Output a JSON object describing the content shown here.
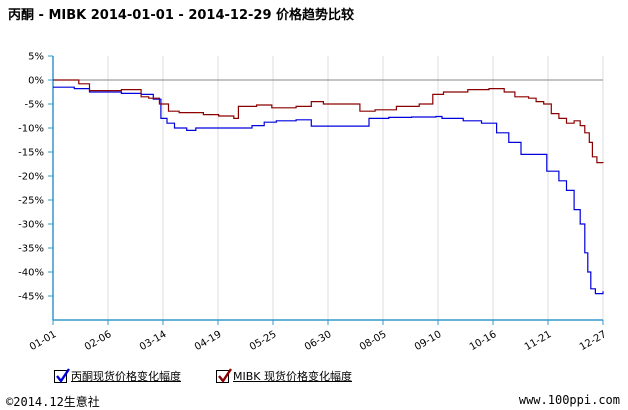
{
  "chart_data": {
    "type": "line",
    "title": "丙酮 - MIBK 2014-01-01 - 2014-12-29 价格趋势比较",
    "xlabel": "",
    "ylabel": "",
    "x_ticks": [
      "01-01",
      "02-06",
      "03-14",
      "04-19",
      "05-25",
      "06-30",
      "08-05",
      "09-10",
      "10-16",
      "11-21",
      "12-27"
    ],
    "y_ticks": [
      "5%",
      "0%",
      "-5%",
      "-10%",
      "-15%",
      "-20%",
      "-25%",
      "-30%",
      "-35%",
      "-40%",
      "-45%"
    ],
    "ylim": [
      -50,
      5
    ],
    "xlim": [
      "2014-01-01",
      "2014-12-29"
    ],
    "series": [
      {
        "name": "丙酮现货价格变化幅度",
        "color": "#0000dd",
        "points": [
          [
            "2014-01-01",
            -1.5
          ],
          [
            "2014-01-15",
            -1.8
          ],
          [
            "2014-01-25",
            -2.5
          ],
          [
            "2014-02-15",
            -2.8
          ],
          [
            "2014-02-28",
            -3.0
          ],
          [
            "2014-03-08",
            -4.0
          ],
          [
            "2014-03-13",
            -8.0
          ],
          [
            "2014-03-17",
            -9.0
          ],
          [
            "2014-03-22",
            -10.0
          ],
          [
            "2014-03-30",
            -10.5
          ],
          [
            "2014-04-05",
            -10.0
          ],
          [
            "2014-04-20",
            -10.0
          ],
          [
            "2014-05-05",
            -10.0
          ],
          [
            "2014-05-12",
            -9.5
          ],
          [
            "2014-05-20",
            -8.8
          ],
          [
            "2014-05-28",
            -8.5
          ],
          [
            "2014-06-10",
            -8.3
          ],
          [
            "2014-06-20",
            -9.6
          ],
          [
            "2014-07-10",
            -9.6
          ],
          [
            "2014-07-22",
            -9.6
          ],
          [
            "2014-07-28",
            -8.0
          ],
          [
            "2014-08-10",
            -7.8
          ],
          [
            "2014-08-25",
            -7.7
          ],
          [
            "2014-09-10",
            -7.6
          ],
          [
            "2014-09-14",
            -8.0
          ],
          [
            "2014-09-28",
            -8.5
          ],
          [
            "2014-10-10",
            -9.0
          ],
          [
            "2014-10-20",
            -11.0
          ],
          [
            "2014-10-28",
            -13.0
          ],
          [
            "2014-11-05",
            -15.5
          ],
          [
            "2014-11-15",
            -15.5
          ],
          [
            "2014-11-22",
            -19.0
          ],
          [
            "2014-11-30",
            -21.0
          ],
          [
            "2014-12-05",
            -23.0
          ],
          [
            "2014-12-10",
            -27.0
          ],
          [
            "2014-12-14",
            -30.0
          ],
          [
            "2014-12-17",
            -36.0
          ],
          [
            "2014-12-19",
            -40.0
          ],
          [
            "2014-12-21",
            -43.5
          ],
          [
            "2014-12-24",
            -44.5
          ],
          [
            "2014-12-29",
            -44.0
          ]
        ]
      },
      {
        "name": "MIBK 现货价格变化幅度",
        "color": "#8b0000",
        "points": [
          [
            "2014-01-01",
            0.0
          ],
          [
            "2014-01-10",
            0.0
          ],
          [
            "2014-01-18",
            -0.8
          ],
          [
            "2014-01-25",
            -2.2
          ],
          [
            "2014-02-15",
            -2.0
          ],
          [
            "2014-02-28",
            -3.5
          ],
          [
            "2014-03-05",
            -3.8
          ],
          [
            "2014-03-12",
            -5.0
          ],
          [
            "2014-03-18",
            -6.5
          ],
          [
            "2014-03-25",
            -6.8
          ],
          [
            "2014-04-10",
            -7.2
          ],
          [
            "2014-04-20",
            -7.5
          ],
          [
            "2014-04-30",
            -8.0
          ],
          [
            "2014-05-03",
            -5.5
          ],
          [
            "2014-05-15",
            -5.2
          ],
          [
            "2014-05-25",
            -5.8
          ],
          [
            "2014-06-10",
            -5.5
          ],
          [
            "2014-06-20",
            -4.5
          ],
          [
            "2014-06-28",
            -5.0
          ],
          [
            "2014-07-10",
            -5.0
          ],
          [
            "2014-07-22",
            -6.5
          ],
          [
            "2014-08-01",
            -6.2
          ],
          [
            "2014-08-15",
            -5.5
          ],
          [
            "2014-08-30",
            -5.0
          ],
          [
            "2014-09-08",
            -3.0
          ],
          [
            "2014-09-15",
            -2.5
          ],
          [
            "2014-10-01",
            -2.0
          ],
          [
            "2014-10-15",
            -1.8
          ],
          [
            "2014-10-25",
            -2.5
          ],
          [
            "2014-11-01",
            -3.5
          ],
          [
            "2014-11-10",
            -3.8
          ],
          [
            "2014-11-15",
            -4.5
          ],
          [
            "2014-11-20",
            -5.0
          ],
          [
            "2014-11-25",
            -7.0
          ],
          [
            "2014-11-30",
            -8.0
          ],
          [
            "2014-12-05",
            -9.0
          ],
          [
            "2014-12-10",
            -8.5
          ],
          [
            "2014-12-14",
            -9.5
          ],
          [
            "2014-12-17",
            -11.0
          ],
          [
            "2014-12-20",
            -13.0
          ],
          [
            "2014-12-22",
            -16.0
          ],
          [
            "2014-12-25",
            -17.2
          ],
          [
            "2014-12-29",
            -17.3
          ]
        ]
      }
    ],
    "grid": "vertical",
    "legend": "bottom-left"
  },
  "legend": {
    "items": [
      {
        "label": "丙酮现货价格变化幅度",
        "color": "#0000dd"
      },
      {
        "label": "MIBK 现货价格变化幅度",
        "color": "#8b0000"
      }
    ]
  },
  "footer": {
    "left": "©2014.12生意社",
    "right": "www.100ppi.com"
  },
  "colors": {
    "axis": "#3399cc",
    "grid": "#dddddd",
    "zero_line": "#888888"
  }
}
